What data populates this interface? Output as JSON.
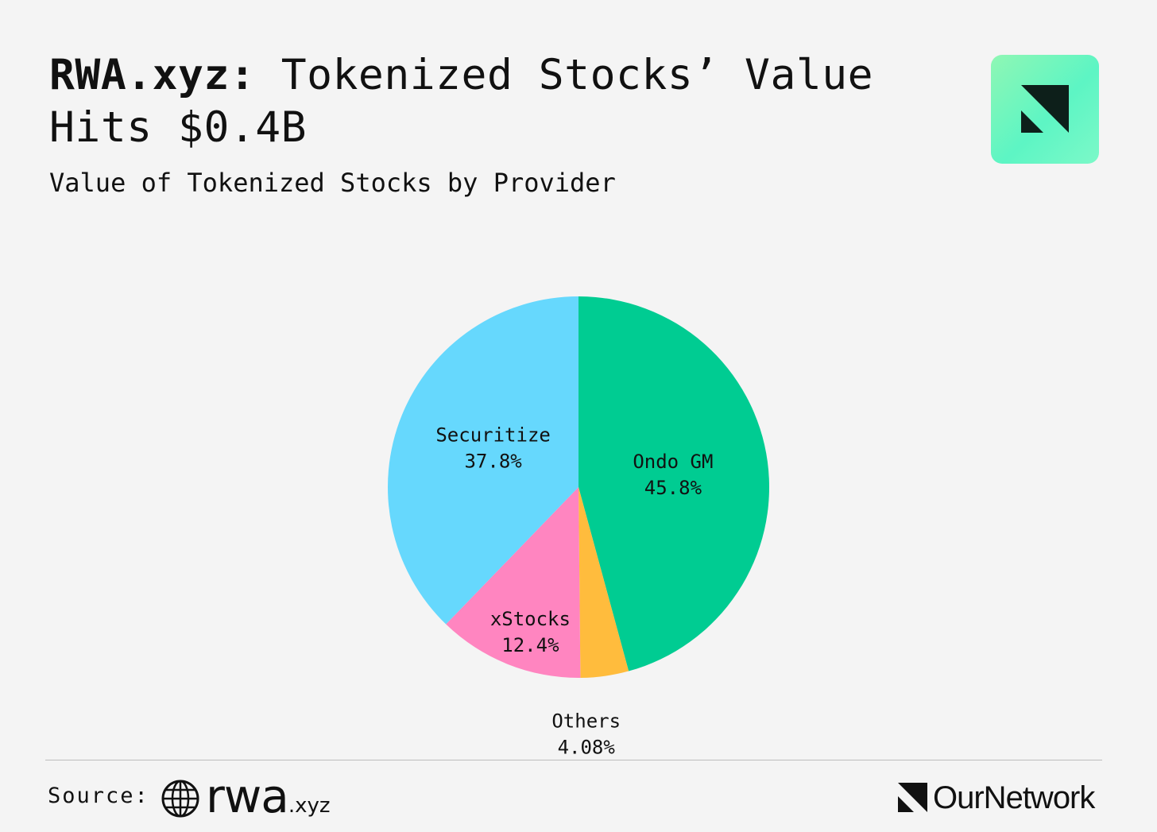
{
  "header": {
    "title_bold": "RWA.xyz:",
    "title_rest": " Tokenized Stocks’ Value Hits $0.4B",
    "subtitle": "Value of Tokenized Stocks by Provider"
  },
  "chart_data": {
    "type": "pie",
    "title": "RWA.xyz: Tokenized Stocks’ Value Hits $0.4B",
    "subtitle": "Value of Tokenized Stocks by Provider",
    "unit": "%",
    "slices": [
      {
        "name": "Ondo GM",
        "value": 45.8,
        "label": "45.8%",
        "color": "#00cc92"
      },
      {
        "name": "Others",
        "value": 4.08,
        "label": "4.08%",
        "color": "#ffbc3d"
      },
      {
        "name": "xStocks",
        "value": 12.4,
        "label": "12.4%",
        "color": "#ff85c0"
      },
      {
        "name": "Securitize",
        "value": 37.8,
        "label": "37.8%",
        "color": "#66d8fd"
      }
    ],
    "start": "12 o'clock",
    "direction": "clockwise"
  },
  "footer": {
    "source_label": "Source:",
    "source_name": "rwa",
    "source_suffix": ".xyz",
    "brand": "OurNetwork"
  },
  "icons": {
    "logo": "ournetwork-logo-icon",
    "globe": "globe-icon",
    "brand_mark": "ournetwork-mark-icon"
  },
  "colors": {
    "background": "#f4f4f4",
    "text": "#111111",
    "badge_green": "#5df5c4"
  }
}
